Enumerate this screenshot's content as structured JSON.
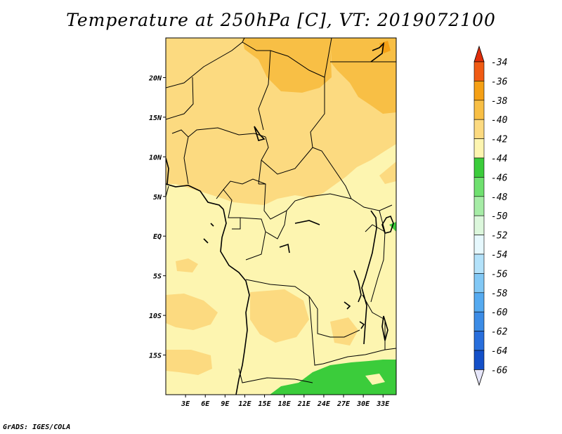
{
  "title": "Temperature at 250hPa [C], VT: 2019072100",
  "credit": "GrADS: IGES/COLA",
  "map": {
    "lat_range": [
      -20,
      25
    ],
    "lon_range": [
      0,
      35
    ],
    "lat_ticks": [
      {
        "lat": 20,
        "label": "20N"
      },
      {
        "lat": 15,
        "label": "15N"
      },
      {
        "lat": 10,
        "label": "10N"
      },
      {
        "lat": 5,
        "label": "5N"
      },
      {
        "lat": 0,
        "label": "EQ"
      },
      {
        "lat": -5,
        "label": "5S"
      },
      {
        "lat": -10,
        "label": "10S"
      },
      {
        "lat": -15,
        "label": "15S"
      }
    ],
    "lon_ticks": [
      {
        "lon": 3,
        "label": "3E"
      },
      {
        "lon": 6,
        "label": "6E"
      },
      {
        "lon": 9,
        "label": "9E"
      },
      {
        "lon": 12,
        "label": "12E"
      },
      {
        "lon": 15,
        "label": "15E"
      },
      {
        "lon": 18,
        "label": "18E"
      },
      {
        "lon": 21,
        "label": "21E"
      },
      {
        "lon": 24,
        "label": "24E"
      },
      {
        "lon": 27,
        "label": "27E"
      },
      {
        "lon": 30,
        "label": "30E"
      },
      {
        "lon": 33,
        "label": "33E"
      }
    ]
  },
  "colorbar": {
    "levels": [
      {
        "label": "-34",
        "color": "#f05b14"
      },
      {
        "label": "-36",
        "color": "#f5a015"
      },
      {
        "label": "-38",
        "color": "#f8bf45"
      },
      {
        "label": "-40",
        "color": "#fcda80"
      },
      {
        "label": "-42",
        "color": "#fdf5b0"
      },
      {
        "label": "-44",
        "color": "#3bcc3b"
      },
      {
        "label": "-46",
        "color": "#6fe06f"
      },
      {
        "label": "-48",
        "color": "#a6eca6"
      },
      {
        "label": "-50",
        "color": "#dcf7dc"
      },
      {
        "label": "-52",
        "color": "#e6f8fd"
      },
      {
        "label": "-54",
        "color": "#b3e2fa"
      },
      {
        "label": "-56",
        "color": "#82c8f5"
      },
      {
        "label": "-58",
        "color": "#55aaf0"
      },
      {
        "label": "-60",
        "color": "#3c8ce6"
      },
      {
        "label": "-62",
        "color": "#286edc"
      },
      {
        "label": "-64",
        "color": "#1450c8"
      },
      {
        "label": "-66",
        "color": "#0a1a6e"
      }
    ],
    "top_cap_color": "#e02d0a",
    "bottom_cap_color": "#e6e6fa"
  },
  "fields": {
    "ocean_bin": "-42",
    "warm_bins": [
      "-40",
      "-38",
      "-36"
    ],
    "cold_bin": "-44"
  }
}
